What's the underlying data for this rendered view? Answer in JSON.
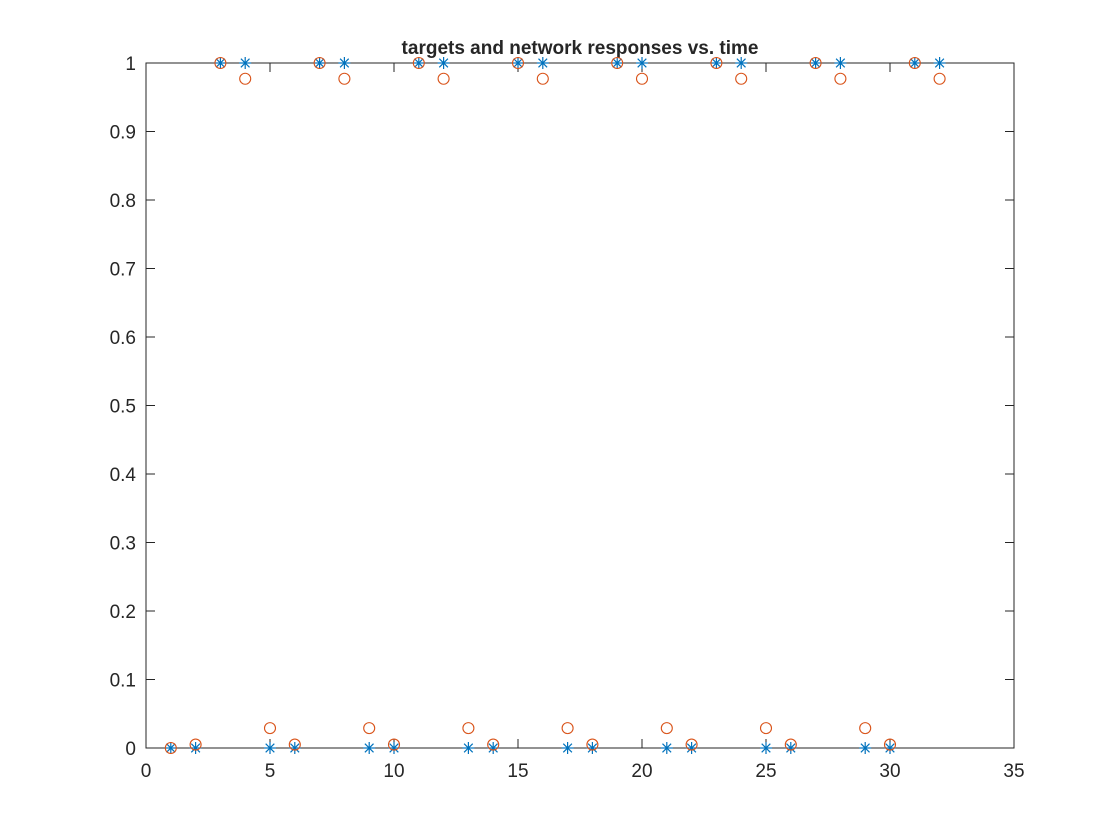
{
  "chart_data": {
    "type": "scatter",
    "title": "targets and network responses vs. time",
    "xlabel": "",
    "ylabel": "",
    "xlim": [
      0,
      35
    ],
    "ylim": [
      0,
      1
    ],
    "xticks": [
      0,
      5,
      10,
      15,
      20,
      25,
      30,
      35
    ],
    "xtick_labels": [
      "0",
      "5",
      "10",
      "15",
      "20",
      "25",
      "30",
      "35"
    ],
    "yticks": [
      0,
      0.1,
      0.2,
      0.3,
      0.4,
      0.5,
      0.6,
      0.7,
      0.8,
      0.9,
      1
    ],
    "ytick_labels": [
      "0",
      "0.1",
      "0.2",
      "0.3",
      "0.4",
      "0.5",
      "0.6",
      "0.7",
      "0.8",
      "0.9",
      "1"
    ],
    "grid": false,
    "series": [
      {
        "marker": "asterisk",
        "color": "#0072BD",
        "x": [
          1,
          2,
          3,
          4,
          5,
          6,
          7,
          8,
          9,
          10,
          11,
          12,
          13,
          14,
          15,
          16,
          17,
          18,
          19,
          20,
          21,
          22,
          23,
          24,
          25,
          26,
          27,
          28,
          29,
          30,
          31,
          32
        ],
        "y": [
          0,
          0,
          1,
          1,
          0,
          0,
          1,
          1,
          0,
          0,
          1,
          1,
          0,
          0,
          1,
          1,
          0,
          0,
          1,
          1,
          0,
          0,
          1,
          1,
          0,
          0,
          1,
          1,
          0,
          0,
          1,
          1
        ]
      },
      {
        "marker": "circle",
        "color": "#D95319",
        "x": [
          1,
          2,
          3,
          4,
          5,
          6,
          7,
          8,
          9,
          10,
          11,
          12,
          13,
          14,
          15,
          16,
          17,
          18,
          19,
          20,
          21,
          22,
          23,
          24,
          25,
          26,
          27,
          28,
          29,
          30,
          31,
          32
        ],
        "y": [
          0,
          0.005,
          1,
          0.977,
          0.029,
          0.005,
          1,
          0.977,
          0.029,
          0.005,
          1,
          0.977,
          0.029,
          0.005,
          1,
          0.977,
          0.029,
          0.005,
          1,
          0.977,
          0.029,
          0.005,
          1,
          0.977,
          0.029,
          0.005,
          1,
          0.977,
          0.029,
          0.005,
          1,
          0.977
        ]
      }
    ]
  }
}
